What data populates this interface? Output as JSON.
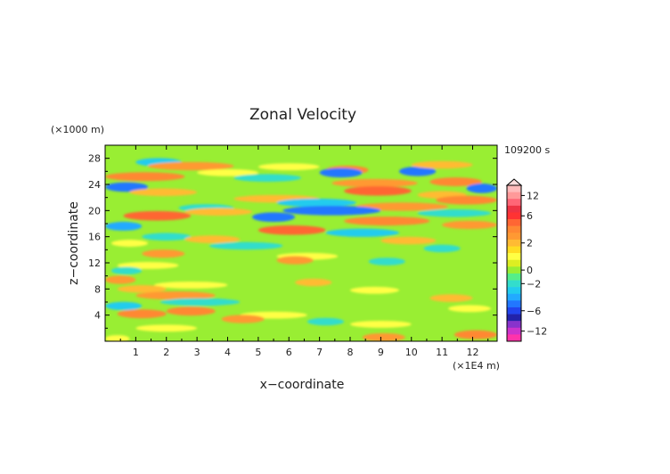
{
  "chart_data": {
    "type": "heatmap",
    "title": "Zonal Velocity",
    "xlabel": "x−coordinate",
    "ylabel": "z−coordinate",
    "x_unit": "(×1E4 m)",
    "y_unit": "(×1000 m)",
    "time_label": "109200 s",
    "xlim": [
      0,
      12.8
    ],
    "ylim": [
      0,
      30
    ],
    "x_ticks": [
      "1",
      "2",
      "3",
      "4",
      "5",
      "6",
      "7",
      "8",
      "9",
      "10",
      "11",
      "12"
    ],
    "y_ticks": [
      "4",
      "8",
      "12",
      "16",
      "20",
      "24",
      "28"
    ],
    "colorbar_ticks": [
      "12",
      "6",
      "2",
      "0",
      "−2",
      "−6",
      "−12"
    ],
    "colorbar_levels": [
      {
        "value": -14,
        "color": "#ff33aa"
      },
      {
        "value": -12,
        "color": "#cc33cc"
      },
      {
        "value": -10,
        "color": "#8833cc"
      },
      {
        "value": -8,
        "color": "#2222aa"
      },
      {
        "value": -6,
        "color": "#2244ee"
      },
      {
        "value": -5,
        "color": "#2277ff"
      },
      {
        "value": -4,
        "color": "#22aaff"
      },
      {
        "value": -3,
        "color": "#22ccee"
      },
      {
        "value": -2,
        "color": "#33ddcc"
      },
      {
        "value": -1,
        "color": "#55ee88"
      },
      {
        "value": 0,
        "color": "#99ee33"
      },
      {
        "value": 0.5,
        "color": "#ddee22"
      },
      {
        "value": 1,
        "color": "#ffff44"
      },
      {
        "value": 1.5,
        "color": "#ffdd22"
      },
      {
        "value": 2,
        "color": "#ffbb33"
      },
      {
        "value": 3,
        "color": "#ff9933"
      },
      {
        "value": 4,
        "color": "#ff8833"
      },
      {
        "value": 5,
        "color": "#ff6633"
      },
      {
        "value": 6,
        "color": "#ff3333"
      },
      {
        "value": 8,
        "color": "#ee3344"
      },
      {
        "value": 10,
        "color": "#ff6677"
      },
      {
        "value": 12,
        "color": "#ff9999"
      },
      {
        "value": 14,
        "color": "#ffbbbb"
      }
    ],
    "dominant_field_color": "#99ee33",
    "bands": [
      {
        "z": 25.2,
        "x0": 0.0,
        "x1": 2.6,
        "value": 4
      },
      {
        "z": 23.6,
        "x0": 0.0,
        "x1": 1.4,
        "value": -5
      },
      {
        "z": 22.8,
        "x0": 0.8,
        "x1": 3.0,
        "value": 2
      },
      {
        "z": 27.4,
        "x0": 1.0,
        "x1": 2.5,
        "value": -3
      },
      {
        "z": 26.8,
        "x0": 1.4,
        "x1": 4.2,
        "value": 3
      },
      {
        "z": 25.8,
        "x0": 3.0,
        "x1": 5.0,
        "value": 1
      },
      {
        "z": 25.0,
        "x0": 4.2,
        "x1": 6.4,
        "value": -2
      },
      {
        "z": 26.7,
        "x0": 5.0,
        "x1": 7.0,
        "value": 1
      },
      {
        "z": 26.2,
        "x0": 7.2,
        "x1": 8.6,
        "value": 4
      },
      {
        "z": 25.8,
        "x0": 7.0,
        "x1": 8.4,
        "value": -5
      },
      {
        "z": 24.2,
        "x0": 7.4,
        "x1": 10.2,
        "value": 3
      },
      {
        "z": 23.0,
        "x0": 7.8,
        "x1": 10.0,
        "value": 5
      },
      {
        "z": 26.0,
        "x0": 9.6,
        "x1": 10.8,
        "value": -5
      },
      {
        "z": 27.0,
        "x0": 10.0,
        "x1": 12.0,
        "value": 2
      },
      {
        "z": 24.4,
        "x0": 10.6,
        "x1": 12.3,
        "value": 4
      },
      {
        "z": 23.4,
        "x0": 11.8,
        "x1": 12.8,
        "value": -5
      },
      {
        "z": 22.4,
        "x0": 10.2,
        "x1": 11.8,
        "value": 2
      },
      {
        "z": 21.8,
        "x0": 4.2,
        "x1": 7.0,
        "value": 2
      },
      {
        "z": 21.2,
        "x0": 5.6,
        "x1": 8.2,
        "value": -3
      },
      {
        "z": 20.6,
        "x0": 8.2,
        "x1": 11.2,
        "value": 3
      },
      {
        "z": 21.6,
        "x0": 10.8,
        "x1": 12.8,
        "value": 4
      },
      {
        "z": 20.0,
        "x0": 5.8,
        "x1": 9.0,
        "value": -5
      },
      {
        "z": 19.2,
        "x0": 0.6,
        "x1": 2.8,
        "value": 5
      },
      {
        "z": 20.4,
        "x0": 2.4,
        "x1": 4.2,
        "value": -2
      },
      {
        "z": 19.8,
        "x0": 2.6,
        "x1": 4.8,
        "value": 2
      },
      {
        "z": 19.0,
        "x0": 4.8,
        "x1": 6.2,
        "value": -5
      },
      {
        "z": 18.4,
        "x0": 7.8,
        "x1": 10.6,
        "value": 4
      },
      {
        "z": 19.6,
        "x0": 10.2,
        "x1": 12.6,
        "value": -2
      },
      {
        "z": 17.6,
        "x0": 0.0,
        "x1": 1.2,
        "value": -4
      },
      {
        "z": 17.0,
        "x0": 5.0,
        "x1": 7.2,
        "value": 5
      },
      {
        "z": 16.6,
        "x0": 7.2,
        "x1": 9.6,
        "value": -3
      },
      {
        "z": 17.8,
        "x0": 11.0,
        "x1": 12.8,
        "value": 3
      },
      {
        "z": 16.0,
        "x0": 1.2,
        "x1": 2.8,
        "value": -2
      },
      {
        "z": 15.6,
        "x0": 2.6,
        "x1": 4.4,
        "value": 2
      },
      {
        "z": 15.0,
        "x0": 0.2,
        "x1": 1.4,
        "value": 1
      },
      {
        "z": 14.6,
        "x0": 3.4,
        "x1": 5.8,
        "value": -2
      },
      {
        "z": 15.4,
        "x0": 9.0,
        "x1": 10.8,
        "value": 2
      },
      {
        "z": 14.2,
        "x0": 10.4,
        "x1": 11.6,
        "value": -2
      },
      {
        "z": 13.4,
        "x0": 1.2,
        "x1": 2.6,
        "value": 3
      },
      {
        "z": 13.0,
        "x0": 5.6,
        "x1": 7.6,
        "value": 1
      },
      {
        "z": 12.4,
        "x0": 5.6,
        "x1": 6.8,
        "value": 3
      },
      {
        "z": 12.2,
        "x0": 8.6,
        "x1": 9.8,
        "value": -2
      },
      {
        "z": 11.6,
        "x0": 0.4,
        "x1": 2.4,
        "value": 1
      },
      {
        "z": 10.8,
        "x0": 0.2,
        "x1": 1.2,
        "value": -2
      },
      {
        "z": 9.4,
        "x0": 0.0,
        "x1": 1.0,
        "value": 3
      },
      {
        "z": 9.0,
        "x0": 6.2,
        "x1": 7.4,
        "value": 2
      },
      {
        "z": 8.6,
        "x0": 1.6,
        "x1": 4.0,
        "value": 1
      },
      {
        "z": 8.0,
        "x0": 0.4,
        "x1": 2.0,
        "value": 2
      },
      {
        "z": 7.8,
        "x0": 8.0,
        "x1": 9.6,
        "value": 1
      },
      {
        "z": 7.0,
        "x0": 1.0,
        "x1": 3.6,
        "value": 3
      },
      {
        "z": 6.6,
        "x0": 10.6,
        "x1": 12.0,
        "value": 2
      },
      {
        "z": 6.0,
        "x0": 1.8,
        "x1": 4.4,
        "value": -2
      },
      {
        "z": 5.4,
        "x0": 0.0,
        "x1": 1.2,
        "value": -3
      },
      {
        "z": 5.0,
        "x0": 11.2,
        "x1": 12.6,
        "value": 1
      },
      {
        "z": 4.6,
        "x0": 2.0,
        "x1": 3.6,
        "value": 4
      },
      {
        "z": 4.2,
        "x0": 0.4,
        "x1": 2.0,
        "value": 4
      },
      {
        "z": 4.0,
        "x0": 4.4,
        "x1": 6.6,
        "value": 1
      },
      {
        "z": 3.4,
        "x0": 3.8,
        "x1": 5.2,
        "value": 3
      },
      {
        "z": 3.0,
        "x0": 6.6,
        "x1": 7.8,
        "value": -2
      },
      {
        "z": 2.6,
        "x0": 8.0,
        "x1": 10.0,
        "value": 1
      },
      {
        "z": 2.0,
        "x0": 1.0,
        "x1": 3.0,
        "value": 1
      },
      {
        "z": 1.0,
        "x0": 11.4,
        "x1": 12.8,
        "value": 4
      },
      {
        "z": 0.6,
        "x0": 8.4,
        "x1": 9.8,
        "value": 3
      },
      {
        "z": 0.4,
        "x0": 0.0,
        "x1": 0.8,
        "value": 1
      }
    ]
  }
}
